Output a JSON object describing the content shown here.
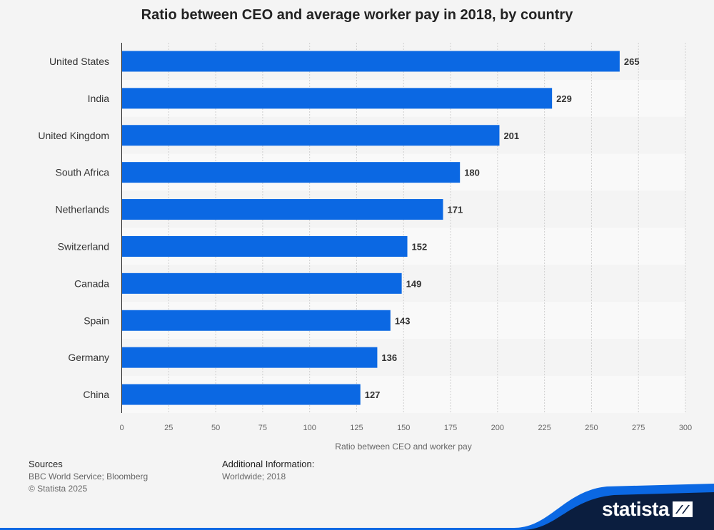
{
  "chart_data": {
    "type": "bar",
    "orientation": "horizontal",
    "title": "Ratio between CEO and average worker pay in 2018, by country",
    "categories": [
      "United States",
      "India",
      "United Kingdom",
      "South Africa",
      "Netherlands",
      "Switzerland",
      "Canada",
      "Spain",
      "Germany",
      "China"
    ],
    "values": [
      265,
      229,
      201,
      180,
      171,
      152,
      149,
      143,
      136,
      127
    ],
    "xlabel": "Ratio between CEO and worker pay",
    "ylabel": "",
    "xlim": [
      0,
      300
    ],
    "xticks": [
      0,
      25,
      50,
      75,
      100,
      125,
      150,
      175,
      200,
      225,
      250,
      275,
      300
    ],
    "grid": true,
    "data_labels": true,
    "bar_color": "#0b68e3"
  },
  "footer": {
    "sources_label": "Sources",
    "sources_text": "BBC World Service; Bloomberg",
    "copyright": "© Statista 2025",
    "additional_label": "Additional Information:",
    "additional_text": "Worldwide; 2018"
  },
  "brand": {
    "logo_text": "statista",
    "logo_icon": "statista-logo-icon",
    "accent_color": "#0b68e3",
    "dark_color": "#0b1e3f"
  }
}
